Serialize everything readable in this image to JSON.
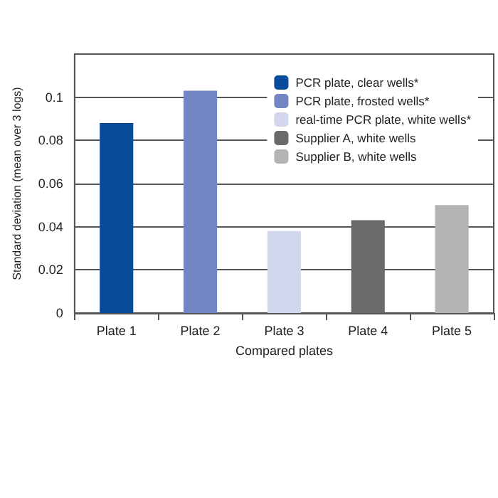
{
  "chart_data": {
    "type": "bar",
    "xlabel": "Compared plates",
    "ylabel": "Standard deviation (mean over 3 logs)",
    "categories": [
      "Plate 1",
      "Plate 2",
      "Plate 3",
      "Plate 4",
      "Plate 5"
    ],
    "series": [
      {
        "name": "PCR plate, clear wells*",
        "color": "#0a4a9a",
        "values": [
          0.088,
          null,
          null,
          null,
          null
        ]
      },
      {
        "name": "PCR plate, frosted wells*",
        "color": "#7386c4",
        "values": [
          null,
          0.103,
          null,
          null,
          null
        ]
      },
      {
        "name": "real-time PCR plate, white wells*",
        "color": "#d3d7ee",
        "values": [
          null,
          null,
          0.038,
          null,
          null
        ]
      },
      {
        "name": "Supplier A, white wells",
        "color": "#6a6a6a",
        "values": [
          null,
          null,
          null,
          0.043,
          null
        ]
      },
      {
        "name": "Supplier B, white wells",
        "color": "#b4b4b4",
        "values": [
          null,
          null,
          null,
          null,
          0.05
        ]
      }
    ],
    "ylim": [
      0,
      0.12
    ],
    "yticks": [
      0,
      0.02,
      0.04,
      0.06,
      0.08,
      0.1
    ],
    "grid": "y",
    "legend": "top right"
  }
}
